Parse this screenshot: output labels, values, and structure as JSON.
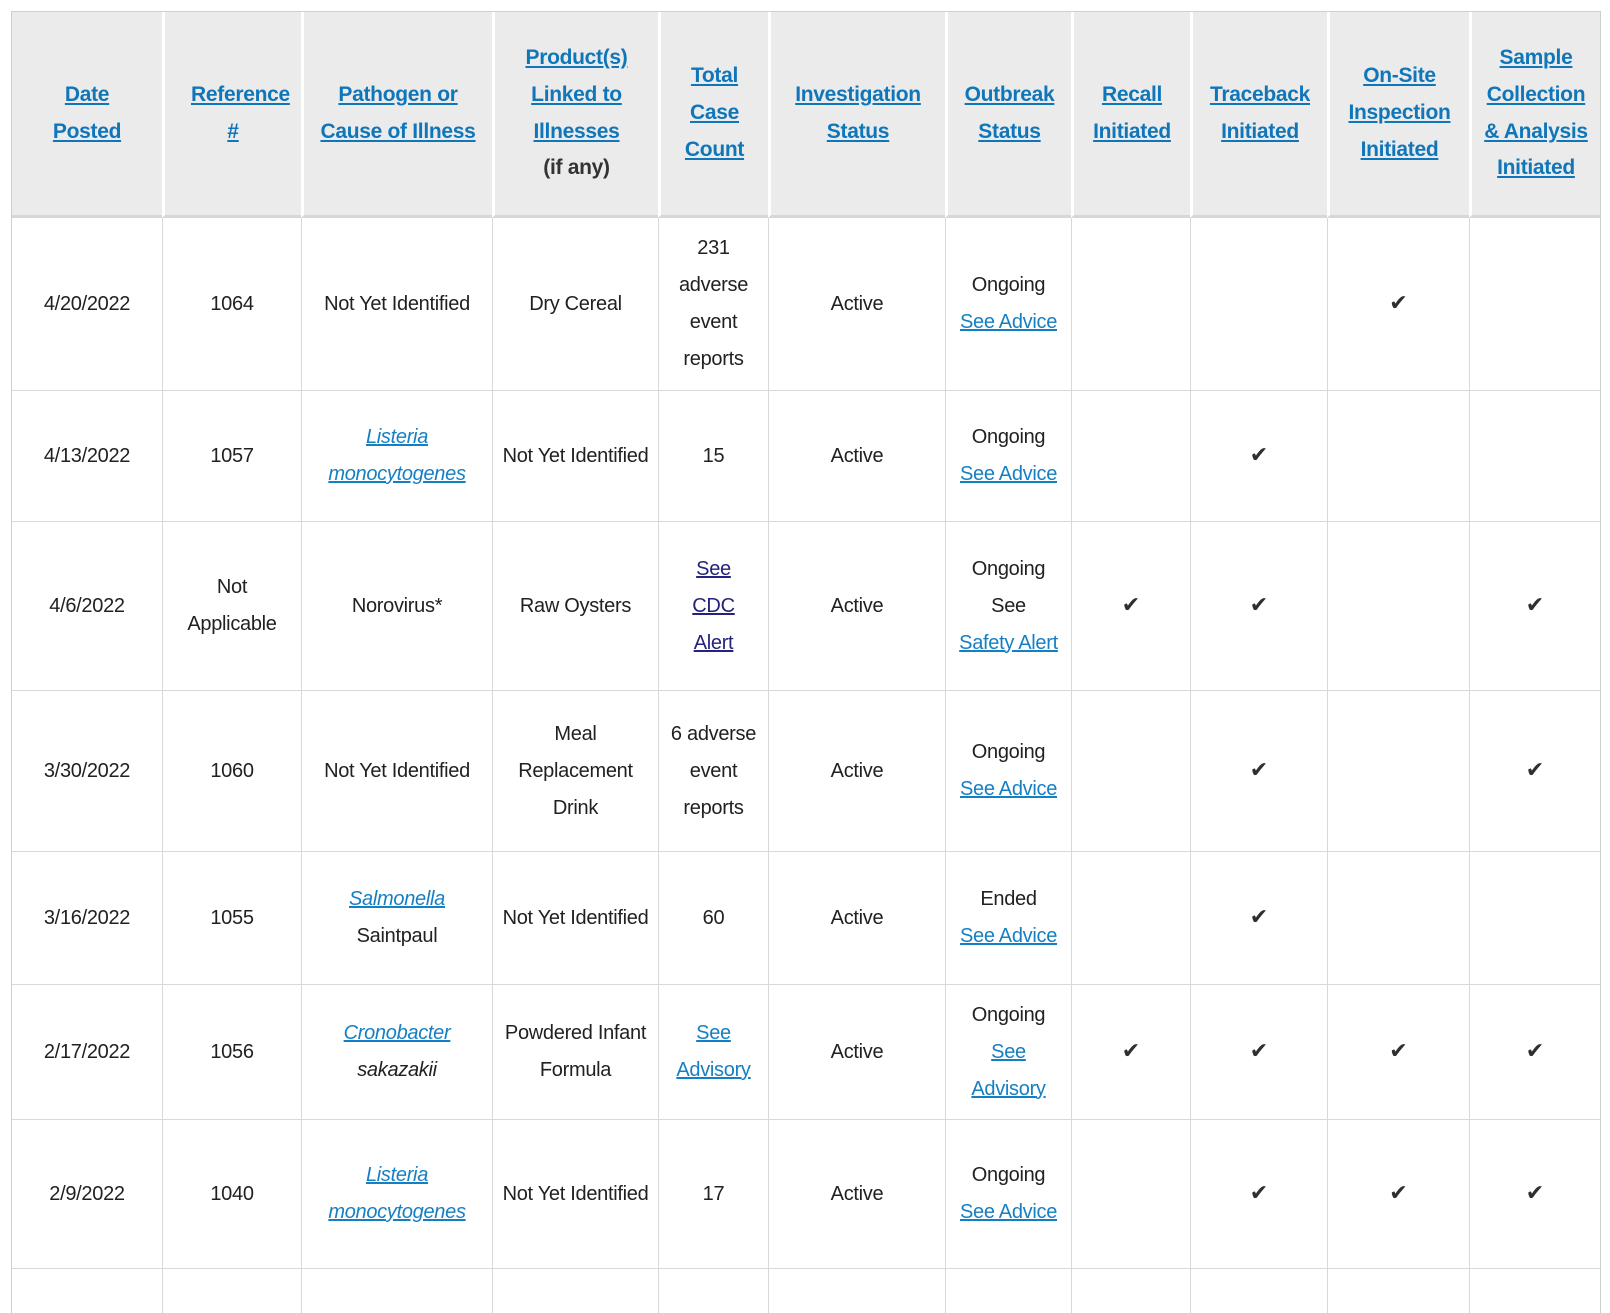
{
  "colors": {
    "header_link_blue": "#1076ba",
    "body_link_blue": "#157fc4",
    "visited_link_navy": "#23237d",
    "checkmark_dark": "#2f2f2f",
    "header_bg_gray": "#ebebeb",
    "gridline_gray": "#d9d9d9"
  },
  "icons": {
    "checkmark": "✔"
  },
  "table": {
    "columns": [
      {
        "label": "Date Posted"
      },
      {
        "label": "Reference #"
      },
      {
        "label": "Pathogen or Cause of Illness"
      },
      {
        "label": "Product(s) Linked to Illnesses",
        "sublabel": "(if any)"
      },
      {
        "label": "Total Case Count"
      },
      {
        "label": "Investigation Status"
      },
      {
        "label": "Outbreak Status"
      },
      {
        "label": "Recall Initiated"
      },
      {
        "label": "Traceback Initiated"
      },
      {
        "label": "On-Site Inspection Initiated"
      },
      {
        "label": "Sample Collection & Analysis Initiated"
      }
    ],
    "rows": [
      {
        "date": "4/20/2022",
        "ref": "1064",
        "pathogen": {
          "text": "Not Yet Identified"
        },
        "product": "Dry Cereal",
        "count": {
          "text": "231 adverse event reports"
        },
        "investigation": "Active",
        "outbreak": {
          "text": "Ongoing",
          "link": "See Advice"
        },
        "recall": "",
        "traceback": "",
        "onsite": "✔",
        "sample": ""
      },
      {
        "date": "4/13/2022",
        "ref": "1057",
        "pathogen": {
          "link": "Listeria monocytogenes"
        },
        "product": "Not Yet Identified",
        "count": {
          "text": "15"
        },
        "investigation": "Active",
        "outbreak": {
          "text": "Ongoing",
          "link": "See Advice"
        },
        "recall": "",
        "traceback": "✔",
        "onsite": "",
        "sample": ""
      },
      {
        "date": "4/6/2022",
        "ref": "Not Applicable",
        "pathogen": {
          "text": "Norovirus*"
        },
        "product": "Raw Oysters",
        "count": {
          "link": "See CDC Alert"
        },
        "investigation": "Active",
        "outbreak": {
          "text": "Ongoing See",
          "link": "Safety Alert"
        },
        "recall": "✔",
        "traceback": "✔",
        "onsite": "",
        "sample": "✔"
      },
      {
        "date": "3/30/2022",
        "ref": "1060",
        "pathogen": {
          "text": "Not Yet Identified"
        },
        "product": "Meal Replacement Drink",
        "count": {
          "text": "6 adverse event reports"
        },
        "investigation": "Active",
        "outbreak": {
          "text": "Ongoing",
          "link": "See Advice"
        },
        "recall": "",
        "traceback": "✔",
        "onsite": "",
        "sample": "✔"
      },
      {
        "date": "3/16/2022",
        "ref": "1055",
        "pathogen": {
          "link": "Salmonella",
          "suffix": "Saintpaul"
        },
        "product": "Not Yet Identified",
        "count": {
          "text": "60"
        },
        "investigation": "Active",
        "outbreak": {
          "text": "Ended",
          "link": "See Advice"
        },
        "recall": "",
        "traceback": "✔",
        "onsite": "",
        "sample": ""
      },
      {
        "date": "2/17/2022",
        "ref": "1056",
        "pathogen": {
          "link": "Cronobacter",
          "suffix": "sakazakii"
        },
        "product": "Powdered Infant Formula",
        "count": {
          "link": "See Advisory"
        },
        "investigation": "Active",
        "outbreak": {
          "text": "Ongoing",
          "link": "See Advisory"
        },
        "recall": "✔",
        "traceback": "✔",
        "onsite": "✔",
        "sample": "✔"
      },
      {
        "date": "2/9/2022",
        "ref": "1040",
        "pathogen": {
          "link": "Listeria monocytogenes"
        },
        "product": "Not Yet Identified",
        "count": {
          "text": "17"
        },
        "investigation": "Active",
        "outbreak": {
          "text": "Ongoing",
          "link": "See Advice"
        },
        "recall": "",
        "traceback": "✔",
        "onsite": "✔",
        "sample": "✔"
      }
    ]
  }
}
